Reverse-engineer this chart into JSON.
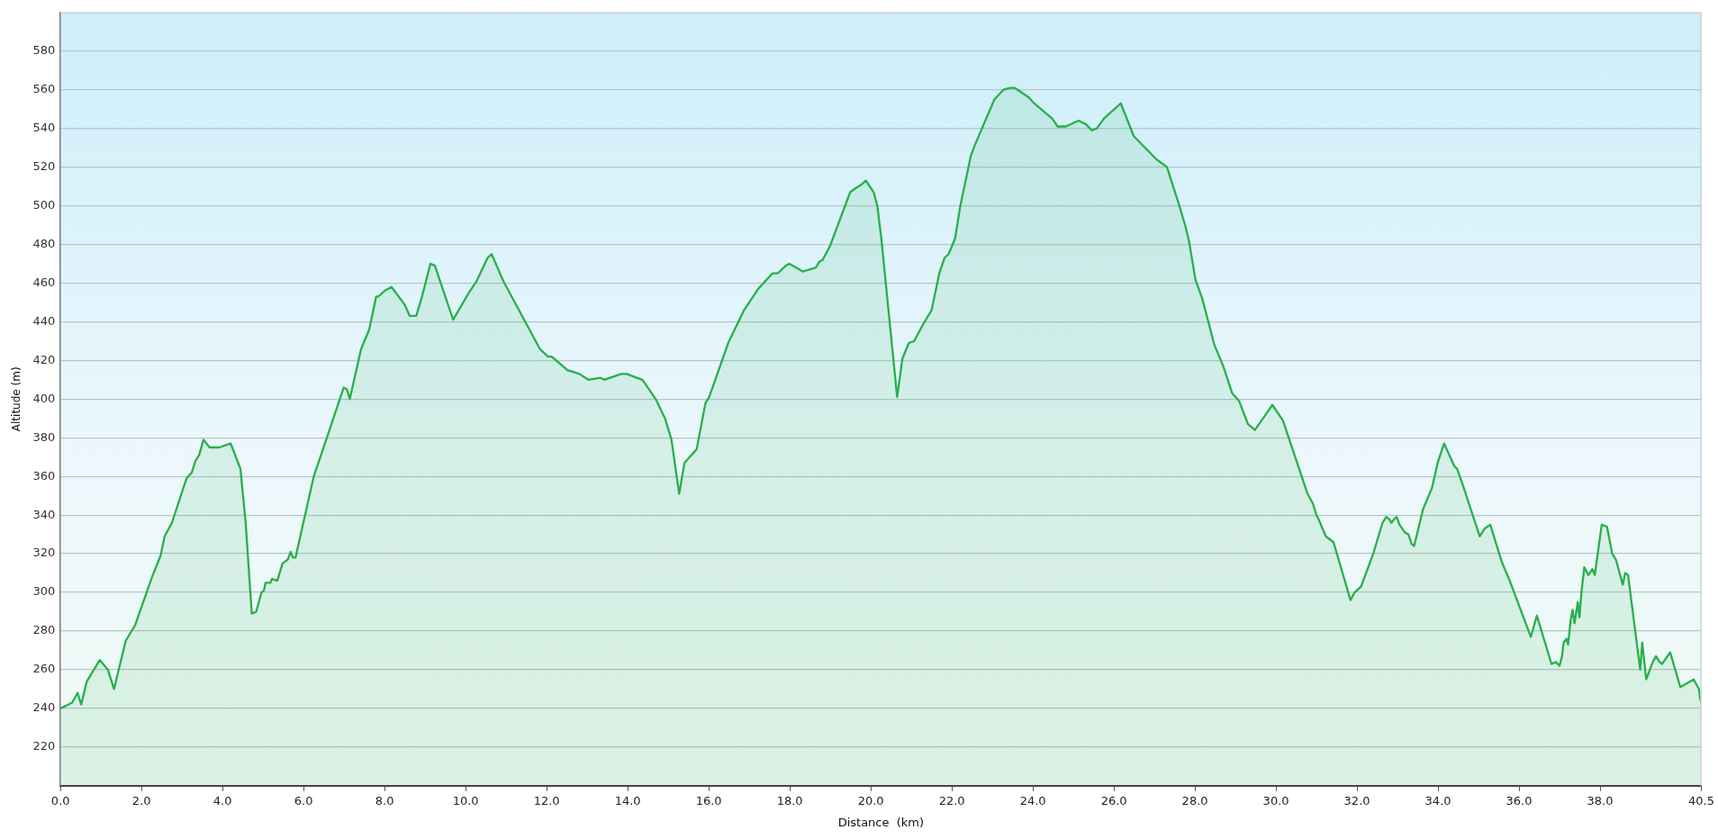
{
  "chart_data": {
    "type": "area",
    "xlabel": "Distance  (km)",
    "ylabel": "Altitude (m)",
    "color": "#27b04b",
    "marker": "none",
    "grid": "y",
    "xlim": [
      0,
      40.5
    ],
    "xticks": [
      {
        "value": 0,
        "label": "0.0"
      },
      {
        "value": 2,
        "label": "2.0"
      },
      {
        "value": 4,
        "label": "4.0"
      },
      {
        "value": 6,
        "label": "6.0"
      },
      {
        "value": 8,
        "label": "8.0"
      },
      {
        "value": 10,
        "label": "10.0"
      },
      {
        "value": 12,
        "label": "12.0"
      },
      {
        "value": 14,
        "label": "14.0"
      },
      {
        "value": 16,
        "label": "16.0"
      },
      {
        "value": 18,
        "label": "18.0"
      },
      {
        "value": 20,
        "label": "20.0"
      },
      {
        "value": 22,
        "label": "22.0"
      },
      {
        "value": 24,
        "label": "24.0"
      },
      {
        "value": 26,
        "label": "26.0"
      },
      {
        "value": 28,
        "label": "28.0"
      },
      {
        "value": 30,
        "label": "30.0"
      },
      {
        "value": 32,
        "label": "32.0"
      },
      {
        "value": 34,
        "label": "34.0"
      },
      {
        "value": 36,
        "label": "36.0"
      },
      {
        "value": 38,
        "label": "38.0"
      },
      40.5
    ],
    "ylim": [
      200,
      600
    ],
    "yticks": [
      220,
      240,
      260,
      280,
      300,
      320,
      340,
      360,
      380,
      400,
      420,
      440,
      460,
      480,
      500,
      520,
      540,
      560,
      580
    ],
    "x": [
      0,
      0.29,
      0.42,
      0.51,
      0.65,
      0.97,
      1.17,
      1.32,
      1.61,
      1.84,
      2.26,
      2.47,
      2.57,
      2.75,
      3.11,
      3.24,
      3.33,
      3.42,
      3.53,
      3.68,
      3.92,
      4.2,
      4.33,
      4.44,
      4.57,
      4.72,
      4.83,
      4.96,
      5.02,
      5.06,
      5.18,
      5.22,
      5.35,
      5.48,
      5.61,
      5.68,
      5.74,
      5.8,
      6.25,
      6.51,
      6.99,
      7.07,
      7.14,
      7.42,
      7.62,
      7.79,
      7.84,
      8,
      8.17,
      8.49,
      8.62,
      8.78,
      8.91,
      9.13,
      9.24,
      9.69,
      10.08,
      10.27,
      10.54,
      10.64,
      10.93,
      11.83,
      12.03,
      12.12,
      12.29,
      12.51,
      12.81,
      13.03,
      13.33,
      13.42,
      13.84,
      13.97,
      14.36,
      14.43,
      14.69,
      14.92,
      15.08,
      15.27,
      15.4,
      15.7,
      15.92,
      16.01,
      16.48,
      16.87,
      17.22,
      17.57,
      17.7,
      17.9,
      17.99,
      18.32,
      18.64,
      18.73,
      18.81,
      18.99,
      19.49,
      19.62,
      19.77,
      19.88,
      20.07,
      20.16,
      20.26,
      20.65,
      20.78,
      20.94,
      21.07,
      21.3,
      21.5,
      21.56,
      21.69,
      21.82,
      21.92,
      22.08,
      22.21,
      22.34,
      22.47,
      22.58,
      23.05,
      23.27,
      23.44,
      23.55,
      23.9,
      24.03,
      24.48,
      24.61,
      24.81,
      25.13,
      25.32,
      25.45,
      25.58,
      25.75,
      26.17,
      26.49,
      27.05,
      27.31,
      27.6,
      27.77,
      27.86,
      28.01,
      28.18,
      28.48,
      28.7,
      28.92,
      29.09,
      29.31,
      29.48,
      29.78,
      29.91,
      30.17,
      30.78,
      30.91,
      31,
      31.07,
      31.23,
      31.42,
      31.84,
      31.94,
      32.1,
      32.4,
      32.63,
      32.72,
      32.79,
      32.85,
      32.92,
      32.98,
      33.05,
      33.18,
      33.27,
      33.35,
      33.41,
      33.63,
      33.85,
      33.99,
      34.15,
      34.41,
      34.47,
      34.67,
      34.73,
      35.03,
      35.15,
      35.29,
      35.57,
      35.77,
      36.29,
      36.44,
      36.8,
      36.91,
      37,
      37.06,
      37.1,
      37.17,
      37.21,
      37.27,
      37.32,
      37.37,
      37.45,
      37.49,
      37.54,
      37.61,
      37.71,
      37.81,
      37.87,
      38.04,
      38.17,
      38.3,
      38.39,
      38.56,
      38.62,
      38.69,
      38.99,
      39.04,
      39.14,
      39.3,
      39.38,
      39.47,
      39.53,
      39.73,
      39.98,
      40.31,
      40.44,
      40.47,
      40.5
    ],
    "values": [
      240,
      243,
      248,
      242,
      254,
      265,
      260,
      250,
      275,
      283,
      308,
      319,
      329,
      336,
      359,
      362,
      368,
      371,
      379,
      375,
      375,
      377,
      370,
      364,
      336,
      289,
      290,
      300,
      301,
      305,
      305,
      307,
      306,
      315,
      317,
      321,
      318,
      318,
      360,
      376,
      406,
      405,
      400,
      426,
      436,
      453,
      453,
      456,
      458,
      449,
      443,
      443,
      452,
      470,
      469,
      441,
      455,
      461,
      473,
      475,
      461,
      426,
      422,
      422,
      419,
      415,
      413,
      410,
      411,
      410,
      413,
      413,
      410,
      408,
      400,
      390,
      379,
      351,
      367,
      374,
      398,
      401,
      429,
      446,
      457,
      465,
      465,
      469,
      470,
      466,
      468,
      471,
      472,
      479,
      507,
      509,
      511,
      513,
      507,
      500,
      483,
      401,
      421,
      429,
      430,
      439,
      446,
      452,
      465,
      473,
      475,
      483,
      500,
      513,
      526,
      532,
      555,
      560,
      561,
      561,
      556,
      553,
      545,
      541,
      541,
      544,
      542,
      539,
      540,
      545,
      553,
      536,
      524,
      520,
      501,
      489,
      481,
      462,
      452,
      428,
      417,
      403,
      399,
      387,
      384,
      393,
      397,
      389,
      351,
      346,
      340,
      337,
      329,
      326,
      296,
      300,
      303,
      320,
      336,
      339,
      338,
      336,
      338,
      339,
      335,
      331,
      330,
      325,
      324,
      343,
      354,
      367,
      377,
      365,
      364,
      352,
      348,
      329,
      333,
      335,
      316,
      306,
      277,
      288,
      263,
      264,
      262,
      267,
      274,
      276,
      273,
      285,
      291,
      284,
      295,
      287,
      300,
      313,
      309,
      312,
      309,
      335,
      334,
      320,
      317,
      304,
      310,
      309,
      260,
      274,
      255,
      264,
      267,
      264,
      263,
      269,
      251,
      255,
      250,
      245,
      243
    ]
  }
}
